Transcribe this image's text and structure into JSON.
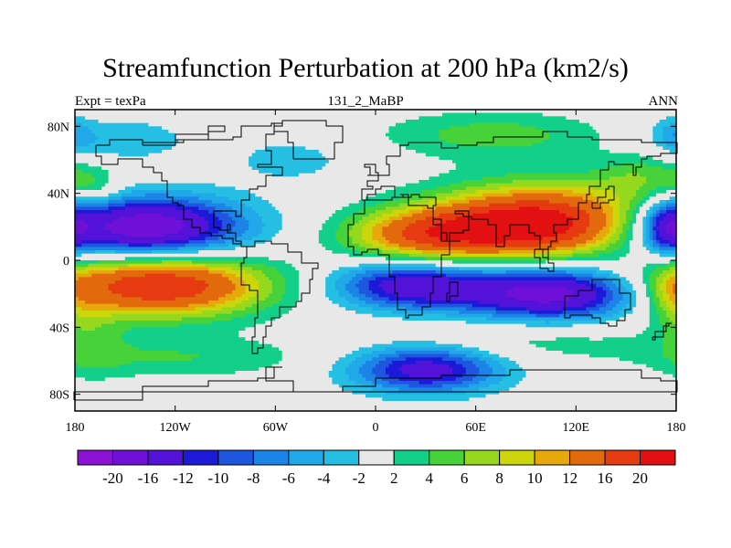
{
  "chart_data": {
    "type": "heatmap",
    "title": "Streamfunction Perturbation at 200 hPa (km2/s)",
    "left_string": "Expt = texPa",
    "center_string": "131_2_MaBP",
    "right_string": "ANN",
    "xlim": [
      -180,
      180
    ],
    "ylim": [
      -90,
      90
    ],
    "x_ticks": [
      {
        "value": -180,
        "label": "180"
      },
      {
        "value": -120,
        "label": "120W"
      },
      {
        "value": -60,
        "label": "60W"
      },
      {
        "value": 0,
        "label": "0"
      },
      {
        "value": 60,
        "label": "60E"
      },
      {
        "value": 120,
        "label": "120E"
      },
      {
        "value": 180,
        "label": "180"
      }
    ],
    "y_ticks": [
      {
        "value": 80,
        "label": "80N"
      },
      {
        "value": 40,
        "label": "40N"
      },
      {
        "value": 0,
        "label": "0"
      },
      {
        "value": -40,
        "label": "40S"
      },
      {
        "value": -80,
        "label": "80S"
      }
    ],
    "colorbar": {
      "levels": [
        -20,
        -16,
        -12,
        -10,
        -8,
        -6,
        -4,
        -2,
        2,
        4,
        6,
        8,
        10,
        12,
        16,
        20
      ],
      "labels": [
        "-20",
        "-16",
        "-12",
        "-10",
        "-8",
        "-6",
        "-4",
        "-2",
        "2",
        "4",
        "6",
        "8",
        "10",
        "12",
        "16",
        "20"
      ],
      "colors": [
        "#8c12d6",
        "#6e10d8",
        "#5212d8",
        "#1c1ad8",
        "#1e56e0",
        "#1c84e6",
        "#20a8e8",
        "#26bfe4",
        "#e8e8e8",
        "#12d08a",
        "#46d238",
        "#96d81e",
        "#ccd60a",
        "#e6a80a",
        "#e26a0c",
        "#e63a10",
        "#e21010"
      ]
    },
    "field_centers": [
      {
        "lon": -140,
        "lat": 20,
        "value": -20,
        "sx": 42,
        "sy": 13
      },
      {
        "lon": -50,
        "lat": 60,
        "value": -3,
        "sx": 28,
        "sy": 10
      },
      {
        "lon": -155,
        "lat": 72,
        "value": -4,
        "sx": 30,
        "sy": 9
      },
      {
        "lon": -130,
        "lat": -15,
        "value": 20,
        "sx": 46,
        "sy": 13
      },
      {
        "lon": -120,
        "lat": -58,
        "value": 4,
        "sx": 60,
        "sy": 9
      },
      {
        "lon": -170,
        "lat": -45,
        "value": 3,
        "sx": 14,
        "sy": 18
      },
      {
        "lon": -170,
        "lat": 45,
        "value": 4,
        "sx": 12,
        "sy": 9
      },
      {
        "lon": 30,
        "lat": 15,
        "value": 14,
        "sx": 34,
        "sy": 11
      },
      {
        "lon": 95,
        "lat": 20,
        "value": 20,
        "sx": 40,
        "sy": 13
      },
      {
        "lon": 110,
        "lat": 35,
        "value": 6,
        "sx": 55,
        "sy": 14
      },
      {
        "lon": 70,
        "lat": 75,
        "value": 5,
        "sx": 48,
        "sy": 10
      },
      {
        "lon": 160,
        "lat": 50,
        "value": 4,
        "sx": 18,
        "sy": 10
      },
      {
        "lon": 20,
        "lat": -15,
        "value": -14,
        "sx": 32,
        "sy": 10
      },
      {
        "lon": 105,
        "lat": -20,
        "value": -18,
        "sx": 38,
        "sy": 11
      },
      {
        "lon": 30,
        "lat": -65,
        "value": -14,
        "sx": 32,
        "sy": 10
      },
      {
        "lon": 90,
        "lat": -48,
        "value": 3,
        "sx": 55,
        "sy": 9
      },
      {
        "lon": 175,
        "lat": 20,
        "value": -10,
        "sx": 10,
        "sy": 12
      },
      {
        "lon": 178,
        "lat": -20,
        "value": 4,
        "sx": 10,
        "sy": 14
      },
      {
        "lon": 178,
        "lat": 75,
        "value": -4,
        "sx": 8,
        "sy": 8
      }
    ]
  }
}
